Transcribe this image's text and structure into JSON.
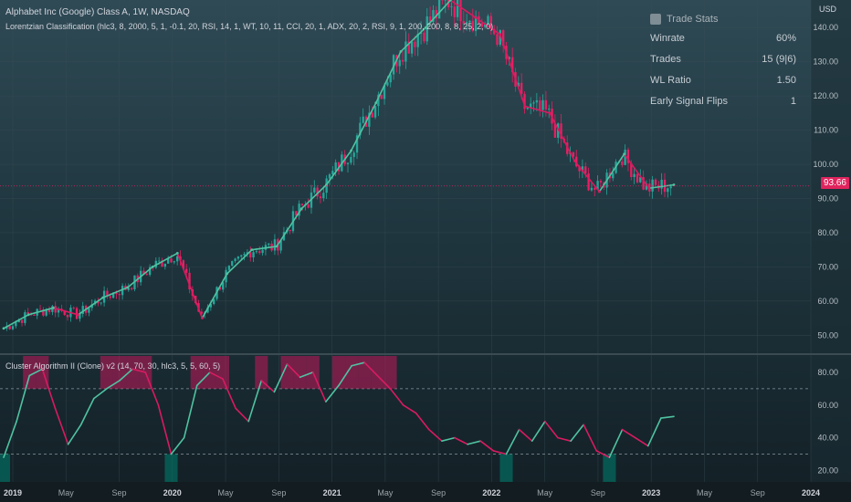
{
  "header": {
    "symbol_line": "Alphabet Inc (Google) Class A, 1W, NASDAQ",
    "indicator_line": "Lorentzian Classification (hlc3, 8, 2000, 5, 1, -0.1, 20, RSI, 14, 1, WT, 10, 11, CCI, 20, 1, ADX, 20, 2, RSI, 9, 1, 200, 200, 8, 8, 25, 2, 0)",
    "oscillator_line": "Cluster Algorithm II (Clone) v2 (14, 70, 30, hlc3, 5, 5, 60, 5)",
    "currency": "USD",
    "last_price": "93.66"
  },
  "trade_stats": {
    "title": "Trade Stats",
    "rows": [
      {
        "label": "Winrate",
        "value": "60%"
      },
      {
        "label": "Trades",
        "value": "15 (9|6)"
      },
      {
        "label": "WL Ratio",
        "value": "1.50"
      },
      {
        "label": "Early Signal Flips",
        "value": "1"
      }
    ]
  },
  "colors": {
    "bull": "#26a69a",
    "bear": "#e91e63",
    "bull_line": "#4fc3a1",
    "bear_line": "#d81b60",
    "highlight_bear": "#c2185b",
    "highlight_bull": "#00796b",
    "price_tag": "#e0245e"
  },
  "chart_data": [
    {
      "type": "line",
      "title": "Alphabet Inc (Google) Class A, 1W, NASDAQ",
      "x_ticks": [
        "2019",
        "May",
        "Sep",
        "2020",
        "May",
        "Sep",
        "2021",
        "May",
        "Sep",
        "2022",
        "May",
        "Sep",
        "2023",
        "May",
        "Sep",
        "2024"
      ],
      "y_ticks": [
        50,
        60,
        70,
        80,
        90,
        100,
        110,
        120,
        130,
        140
      ],
      "ylim": [
        45,
        147
      ],
      "x": [
        "2019-01",
        "2019-03",
        "2019-05",
        "2019-07",
        "2019-09",
        "2019-11",
        "2020-01",
        "2020-02",
        "2020-03",
        "2020-05",
        "2020-07",
        "2020-09",
        "2020-11",
        "2021-01",
        "2021-03",
        "2021-05",
        "2021-07",
        "2021-09",
        "2021-11",
        "2022-01",
        "2022-03",
        "2022-05",
        "2022-07",
        "2022-09",
        "2022-11",
        "2023-01",
        "2023-02",
        "2023-03"
      ],
      "series": [
        {
          "values": [
            52,
            56,
            58,
            56,
            61,
            64,
            70,
            74,
            55,
            68,
            75,
            76,
            87,
            94,
            104,
            118,
            133,
            140,
            148,
            143,
            138,
            117,
            115,
            101,
            92,
            103,
            93,
            94
          ]
        }
      ],
      "last_value": 93.66
    },
    {
      "type": "line",
      "title": "Cluster Algorithm II (Clone) v2 (14, 70, 30, hlc3, 5, 5, 60, 5)",
      "y_ticks": [
        20,
        40,
        60,
        80
      ],
      "ylim": [
        13,
        90
      ],
      "levels": [
        70,
        30
      ],
      "series": [
        {
          "values": [
            28,
            50,
            78,
            82,
            58,
            36,
            48,
            64,
            70,
            75,
            82,
            80,
            60,
            30,
            40,
            72,
            80,
            76,
            58,
            50,
            75,
            68,
            85,
            77,
            80,
            62,
            72,
            84,
            86,
            78,
            70,
            60,
            55,
            45,
            38,
            40,
            36,
            38,
            32,
            30,
            45,
            38,
            50,
            40,
            38,
            48,
            32,
            28,
            45,
            40,
            35,
            52,
            53
          ]
        }
      ]
    }
  ]
}
